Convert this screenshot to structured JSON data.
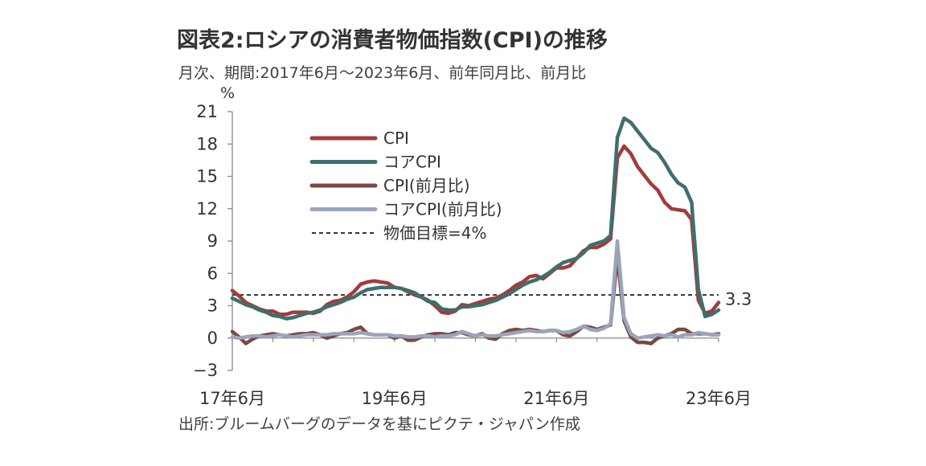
{
  "title": "図表2:ロシアの消費者物価指数(CPI)の推移",
  "subtitle": "月次、期間:2017年6月〜2023年6月、前年同月比、前月比",
  "source": "出所:ブルームバーグのデータを基にピクテ・ジャパン作成",
  "colors": {
    "cpi": "#a33b3b",
    "core_cpi": "#3f6e6e",
    "cpi_mom": "#7a4a40",
    "core_cpi_mom": "#9aa5bb",
    "target": "#333333",
    "axis": "#888888"
  },
  "chart_data": {
    "type": "line",
    "ylabel": "%",
    "ylim": [
      -3,
      21
    ],
    "yticks": [
      -3,
      0,
      3,
      6,
      9,
      12,
      15,
      18,
      21
    ],
    "xlim": [
      "2017-06",
      "2023-06"
    ],
    "xticks": [
      {
        "date": "2017-06",
        "label": "17年6月"
      },
      {
        "date": "2019-06",
        "label": "19年6月"
      },
      {
        "date": "2021-06",
        "label": "21年6月"
      },
      {
        "date": "2023-06",
        "label": "23年6月"
      }
    ],
    "grid": false,
    "legend": "top-left",
    "x": [
      "2017-06",
      "2017-07",
      "2017-08",
      "2017-09",
      "2017-10",
      "2017-11",
      "2017-12",
      "2018-01",
      "2018-02",
      "2018-03",
      "2018-04",
      "2018-05",
      "2018-06",
      "2018-07",
      "2018-08",
      "2018-09",
      "2018-10",
      "2018-11",
      "2018-12",
      "2019-01",
      "2019-02",
      "2019-03",
      "2019-04",
      "2019-05",
      "2019-06",
      "2019-07",
      "2019-08",
      "2019-09",
      "2019-10",
      "2019-11",
      "2019-12",
      "2020-01",
      "2020-02",
      "2020-03",
      "2020-04",
      "2020-05",
      "2020-06",
      "2020-07",
      "2020-08",
      "2020-09",
      "2020-10",
      "2020-11",
      "2020-12",
      "2021-01",
      "2021-02",
      "2021-03",
      "2021-04",
      "2021-05",
      "2021-06",
      "2021-07",
      "2021-08",
      "2021-09",
      "2021-10",
      "2021-11",
      "2021-12",
      "2022-01",
      "2022-02",
      "2022-03",
      "2022-04",
      "2022-05",
      "2022-06",
      "2022-07",
      "2022-08",
      "2022-09",
      "2022-10",
      "2022-11",
      "2022-12",
      "2023-01",
      "2023-02",
      "2023-03",
      "2023-04",
      "2023-05",
      "2023-06"
    ],
    "series": [
      {
        "name": "CPI",
        "key": "cpi",
        "width": 4.5,
        "values": [
          4.4,
          3.9,
          3.3,
          3.0,
          2.7,
          2.5,
          2.5,
          2.2,
          2.2,
          2.4,
          2.4,
          2.4,
          2.3,
          2.5,
          3.1,
          3.4,
          3.5,
          3.8,
          4.3,
          5.0,
          5.2,
          5.3,
          5.2,
          5.1,
          4.7,
          4.6,
          4.3,
          4.0,
          3.8,
          3.5,
          3.0,
          2.4,
          2.3,
          2.5,
          3.1,
          3.0,
          3.2,
          3.4,
          3.6,
          3.7,
          4.0,
          4.4,
          4.9,
          5.2,
          5.7,
          5.8,
          5.5,
          6.0,
          6.5,
          6.5,
          6.7,
          7.4,
          8.1,
          8.4,
          8.4,
          8.7,
          9.2,
          16.7,
          17.8,
          17.1,
          15.9,
          15.1,
          14.3,
          13.7,
          12.6,
          12.0,
          11.9,
          11.8,
          11.0,
          3.5,
          2.3,
          2.5,
          3.3
        ]
      },
      {
        "name": "コアCPI",
        "key": "core_cpi",
        "width": 4.5,
        "values": [
          3.7,
          3.4,
          3.1,
          2.9,
          2.6,
          2.4,
          2.1,
          2.0,
          1.8,
          1.9,
          2.1,
          2.3,
          2.4,
          2.6,
          2.9,
          3.1,
          3.3,
          3.6,
          3.8,
          4.2,
          4.5,
          4.6,
          4.7,
          4.7,
          4.7,
          4.6,
          4.4,
          4.2,
          3.8,
          3.4,
          3.3,
          2.7,
          2.6,
          2.6,
          2.9,
          2.9,
          3.0,
          3.1,
          3.3,
          3.5,
          3.8,
          4.1,
          4.5,
          4.9,
          5.2,
          5.4,
          5.7,
          6.1,
          6.6,
          7.0,
          7.2,
          7.4,
          7.9,
          8.6,
          8.8,
          9.0,
          9.5,
          18.6,
          20.4,
          20.0,
          19.2,
          18.4,
          17.6,
          17.2,
          16.3,
          15.2,
          14.4,
          14.0,
          12.6,
          4.5,
          2.0,
          2.2,
          2.6
        ]
      },
      {
        "name": "CPI(前月比)",
        "key": "cpi_mom",
        "width": 4.5,
        "values": [
          0.6,
          0.1,
          -0.5,
          -0.1,
          0.2,
          0.3,
          0.4,
          0.3,
          0.2,
          0.3,
          0.4,
          0.4,
          0.5,
          0.3,
          0.0,
          0.2,
          0.4,
          0.5,
          0.8,
          1.0,
          0.4,
          0.3,
          0.3,
          0.3,
          0.0,
          0.2,
          -0.2,
          -0.2,
          0.1,
          0.3,
          0.4,
          0.4,
          0.3,
          0.5,
          0.5,
          0.3,
          0.2,
          0.4,
          0.0,
          -0.1,
          0.4,
          0.7,
          0.8,
          0.7,
          0.8,
          0.7,
          0.6,
          0.7,
          0.7,
          0.3,
          0.2,
          0.6,
          1.1,
          1.0,
          0.8,
          1.0,
          1.2,
          7.6,
          1.6,
          0.1,
          -0.4,
          -0.4,
          -0.5,
          0.0,
          0.2,
          0.4,
          0.8,
          0.8,
          0.4,
          0.4,
          0.4,
          0.3,
          0.4
        ]
      },
      {
        "name": "コアCPI(前月比)",
        "key": "core_cpi_mom",
        "width": 4.5,
        "values": [
          0.1,
          0.0,
          0.1,
          0.2,
          0.2,
          0.1,
          0.2,
          0.3,
          0.2,
          0.1,
          0.2,
          0.3,
          0.3,
          0.3,
          0.3,
          0.4,
          0.4,
          0.4,
          0.4,
          0.5,
          0.4,
          0.3,
          0.3,
          0.3,
          0.2,
          0.2,
          0.1,
          0.1,
          0.2,
          0.2,
          0.1,
          0.2,
          0.2,
          0.3,
          0.6,
          0.4,
          0.2,
          0.3,
          0.2,
          0.2,
          0.3,
          0.4,
          0.5,
          0.6,
          0.7,
          0.6,
          0.6,
          0.7,
          0.7,
          0.5,
          0.6,
          0.8,
          1.1,
          0.8,
          0.7,
          0.9,
          1.3,
          9.0,
          1.9,
          0.4,
          0.0,
          0.1,
          0.2,
          0.3,
          0.2,
          0.3,
          0.1,
          0.3,
          0.3,
          0.5,
          0.4,
          0.3,
          0.3
        ]
      }
    ],
    "target_line": {
      "name": "物価目標=4%",
      "value": 4
    },
    "annotation": {
      "text": "3.3",
      "value": 3.3
    }
  }
}
